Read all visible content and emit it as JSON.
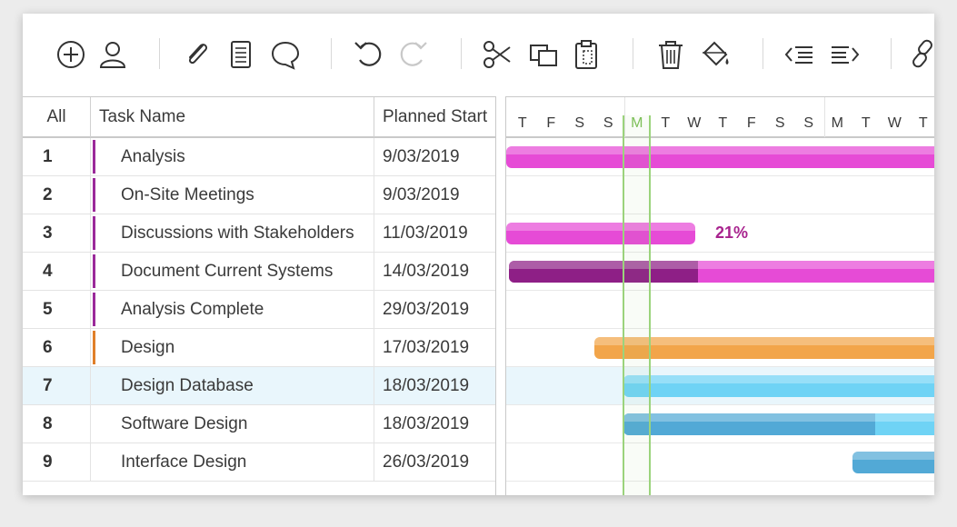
{
  "toolbar": {
    "icons": [
      "add-icon",
      "user-icon",
      "attachment-icon",
      "notes-icon",
      "comment-icon",
      "undo-icon",
      "redo-icon",
      "cut-icon",
      "copy-icon",
      "paste-icon",
      "delete-icon",
      "fill-color-icon",
      "outdent-icon",
      "indent-icon",
      "link-icon"
    ]
  },
  "grid": {
    "headers": {
      "all": "All",
      "task_name": "Task Name",
      "planned_start": "Planned Start"
    },
    "rows": [
      {
        "num": "1",
        "name": "Analysis",
        "start": "9/03/2019",
        "color": "#9b2a9a"
      },
      {
        "num": "2",
        "name": "On-Site Meetings",
        "start": "9/03/2019",
        "color": "#9b2a9a"
      },
      {
        "num": "3",
        "name": "Discussions with Stakeholders",
        "start": "11/03/2019",
        "color": "#9b2a9a"
      },
      {
        "num": "4",
        "name": "Document Current Systems",
        "start": "14/03/2019",
        "color": "#9b2a9a"
      },
      {
        "num": "5",
        "name": "Analysis Complete",
        "start": "29/03/2019",
        "color": "#9b2a9a"
      },
      {
        "num": "6",
        "name": "Design",
        "start": "17/03/2019",
        "color": "#e07f2a"
      },
      {
        "num": "7",
        "name": "Design Database",
        "start": "18/03/2019",
        "color": "",
        "selected": true
      },
      {
        "num": "8",
        "name": "Software Design",
        "start": "18/03/2019",
        "color": ""
      },
      {
        "num": "9",
        "name": "Interface Design",
        "start": "26/03/2019",
        "color": ""
      }
    ]
  },
  "gantt": {
    "days": [
      "T",
      "F",
      "S",
      "S",
      "M",
      "T",
      "W",
      "T",
      "F",
      "S",
      "S",
      "M",
      "T",
      "W",
      "T"
    ],
    "today_label": "M",
    "percent_label": "21%",
    "colors": {
      "magenta": "#e64bd6",
      "purple": "#8e1f86",
      "orange": "#f2a54a",
      "sky": "#6fd3f5",
      "blue": "#52a9d6",
      "today": "#9bd37c"
    }
  }
}
